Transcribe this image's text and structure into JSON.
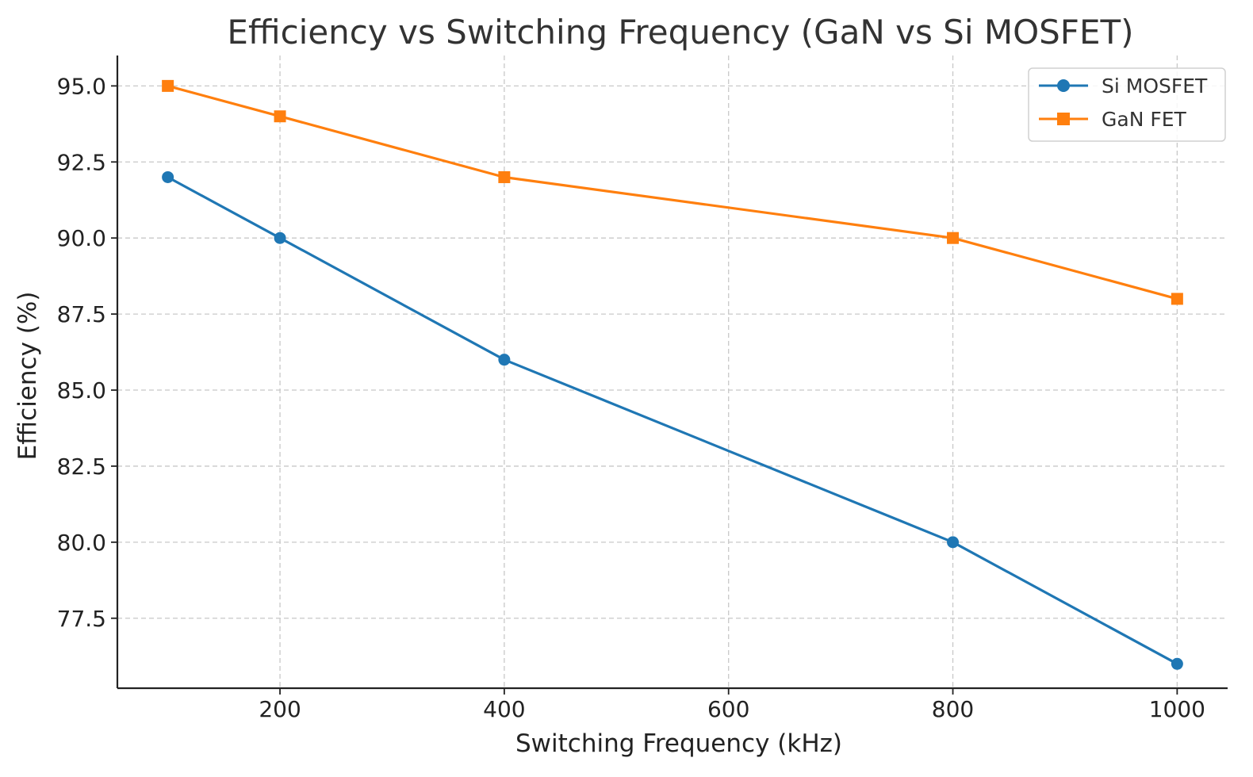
{
  "chart_data": {
    "type": "line",
    "title": "Efficiency vs Switching Frequency (GaN vs Si MOSFET)",
    "xlabel": "Switching Frequency (kHz)",
    "ylabel": "Efficiency (%)",
    "xlim": [
      55,
      1045
    ],
    "ylim": [
      75.2,
      96.0
    ],
    "x_ticks": [
      200,
      400,
      600,
      800,
      1000
    ],
    "y_ticks": [
      77.5,
      80.0,
      82.5,
      85.0,
      87.5,
      90.0,
      92.5,
      95.0
    ],
    "grid": true,
    "legend_position": "top-right",
    "series": [
      {
        "name": "Si MOSFET",
        "color": "#1f77b4",
        "marker": "circle",
        "x": [
          100,
          200,
          400,
          800,
          1000
        ],
        "y": [
          92,
          90,
          86,
          80,
          76
        ]
      },
      {
        "name": "GaN FET",
        "color": "#ff7f0e",
        "marker": "square",
        "x": [
          100,
          200,
          400,
          800,
          1000
        ],
        "y": [
          95,
          94,
          92,
          90,
          88
        ]
      }
    ]
  }
}
